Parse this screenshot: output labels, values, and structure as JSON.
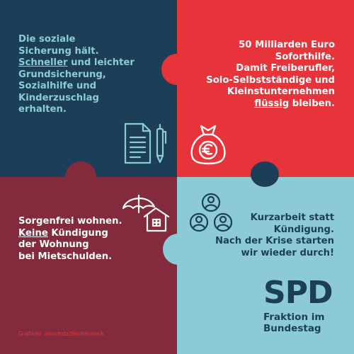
{
  "panels": {
    "top_left": {
      "lines": [
        "Die soziale",
        "Sicherung hält.",
        "Schneller und leichter",
        "Grundsicherung,",
        "Sozialhilfe und",
        "Kinderzuschlag",
        "erhalten."
      ],
      "underline_word": "Schneller",
      "icon": "document-pen-icon",
      "color": "#1c3f57"
    },
    "top_right": {
      "lines": [
        "50 Milliarden Euro",
        "Soforthilfe.",
        "Damit Freiberufler,",
        "Solo-Selbstständige und",
        "Kleinstunternehmen",
        "flüssig bleiben."
      ],
      "underline_word": "flüssig",
      "icon": "euro-money-bag-icon",
      "color": "#e6343a"
    },
    "bottom_left": {
      "lines": [
        "Sorgenfrei wohnen.",
        "Keine Kündigung",
        "der Wohnung",
        "bei Mietschulden."
      ],
      "underline_word": "Keine",
      "icon": "umbrella-house-icon",
      "color": "#842a3d"
    },
    "bottom_right": {
      "lines": [
        "Kurzarbeit statt",
        "Kündigung.",
        "Nach der Krise starten",
        "wir wieder durch!"
      ],
      "icon": "people-group-icon",
      "color": "#8ccbd6"
    }
  },
  "logo": {
    "mark": "SPD",
    "line1": "Fraktion im",
    "line2": "Bundestag"
  },
  "credit": "Grafiken: alexdndz/Shutterstock"
}
